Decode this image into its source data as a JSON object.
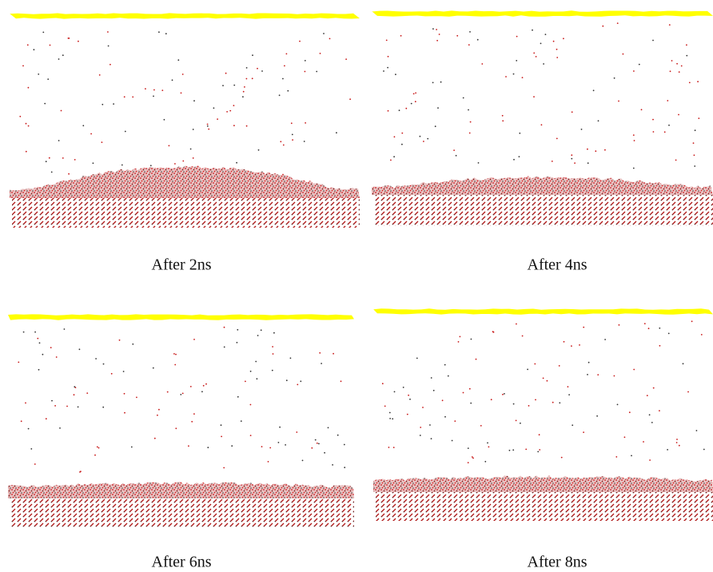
{
  "panels": [
    {
      "caption": "After 2ns"
    },
    {
      "caption": "After 4ns"
    },
    {
      "caption": "After 6ns"
    },
    {
      "caption": "After 8ns"
    }
  ]
}
